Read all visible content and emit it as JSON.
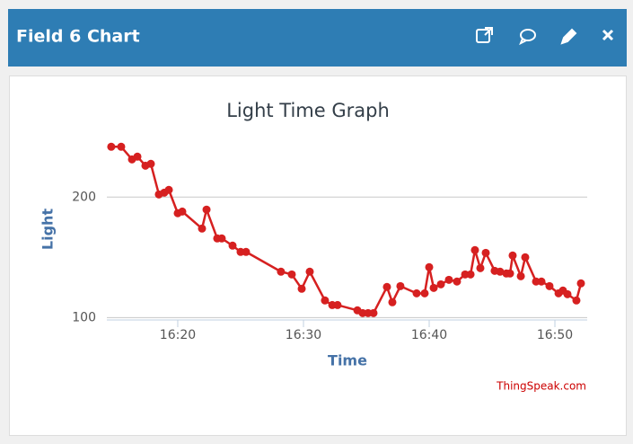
{
  "header": {
    "title": "Field 6 Chart"
  },
  "chart_data": {
    "type": "line",
    "title": "Light Time Graph",
    "x_label": "Time",
    "y_label": "Light",
    "credit": "ThingSpeak.com",
    "color": "#d62020",
    "x": [
      14.71,
      15.5,
      16.36,
      16.79,
      17.43,
      17.86,
      18.5,
      18.93,
      19.29,
      20,
      20.36,
      21.93,
      22.29,
      23.14,
      23.5,
      24.36,
      25,
      25.43,
      28.21,
      29.07,
      29.86,
      30.5,
      31.71,
      32.29,
      32.71,
      34.29,
      34.71,
      35.14,
      35.57,
      36.64,
      37.07,
      37.71,
      39,
      39.64,
      40,
      40.36,
      40.93,
      41.57,
      42.21,
      42.86,
      43.29,
      43.64,
      44.07,
      44.5,
      45.21,
      45.64,
      46.14,
      46.43,
      46.64,
      47.29,
      47.64,
      48.5,
      48.93,
      49.57,
      50.29,
      50.64,
      51,
      51.71,
      52.07
    ],
    "values": [
      241.8,
      241.8,
      231.3,
      233.6,
      226.1,
      227.6,
      202.2,
      203.7,
      206,
      186.6,
      188,
      173.9,
      189.6,
      165.7,
      165.7,
      159.7,
      154.5,
      154.5,
      138.1,
      135.8,
      123.9,
      138.1,
      114.2,
      110.4,
      110.4,
      106,
      103.7,
      103.7,
      103.7,
      125.4,
      112.7,
      126.1,
      120.1,
      120.1,
      141.8,
      124.6,
      127.6,
      131.3,
      129.9,
      135.8,
      135.8,
      156,
      141,
      153.7,
      138.8,
      138.1,
      136.6,
      136.6,
      151.5,
      134.3,
      150,
      129.9,
      129.9,
      126.1,
      120.1,
      122.4,
      119.4,
      114.2,
      128.4
    ],
    "xlim": [
      14.36,
      52.57
    ],
    "xticks": [
      {
        "value": 20,
        "label": "16:20"
      },
      {
        "value": 30,
        "label": "16:30"
      },
      {
        "value": 40,
        "label": "16:40"
      },
      {
        "value": 50,
        "label": "16:50"
      }
    ],
    "ylim": [
      98,
      252
    ],
    "yticks": [
      100,
      200
    ],
    "grid": true
  }
}
